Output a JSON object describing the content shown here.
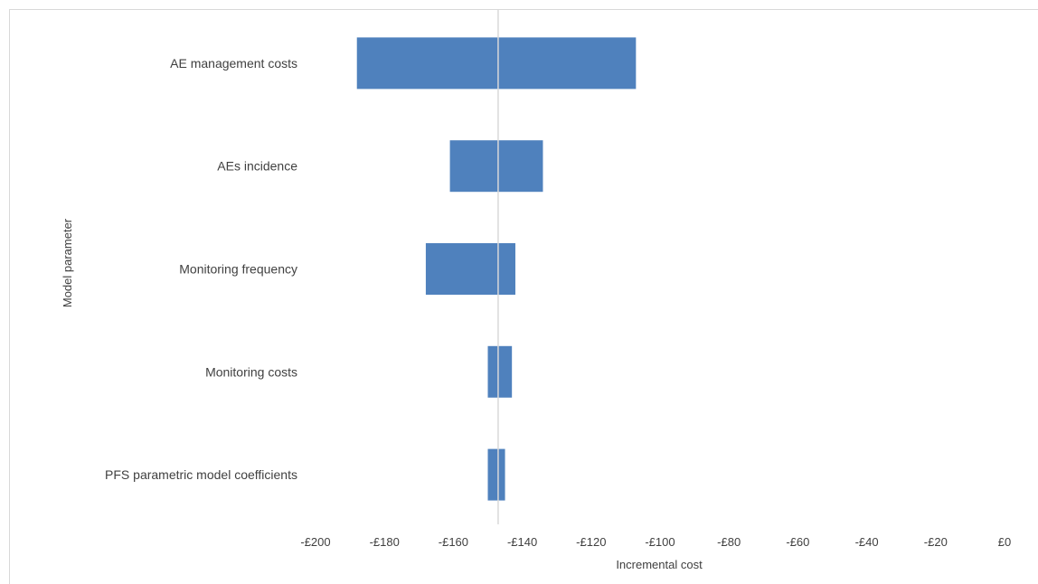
{
  "chart_data": {
    "type": "bar",
    "orientation": "horizontal",
    "subtype": "tornado",
    "xlabel": "Incremental cost",
    "ylabel": "Model parameter",
    "xlim": [
      -200,
      0
    ],
    "x_ticks": [
      -200,
      -180,
      -160,
      -140,
      -120,
      -100,
      -80,
      -60,
      -40,
      -20,
      0
    ],
    "x_tick_labels": [
      "-£200",
      "-£180",
      "-£160",
      "-£140",
      "-£120",
      "-£100",
      "-£80",
      "-£60",
      "-£40",
      "-£20",
      "£0"
    ],
    "base_value": -147,
    "categories": [
      "AE management costs",
      "AEs incidence",
      "Monitoring frequency",
      "Monitoring costs",
      "PFS parametric model coefficients"
    ],
    "ranges": [
      [
        -188,
        -107
      ],
      [
        -161,
        -134
      ],
      [
        -168,
        -142
      ],
      [
        -150,
        -143
      ],
      [
        -150,
        -145
      ]
    ],
    "bar_color": "#4f81bd",
    "reference_line_color": "#d9d9d9",
    "grid": false,
    "legend": "none"
  }
}
